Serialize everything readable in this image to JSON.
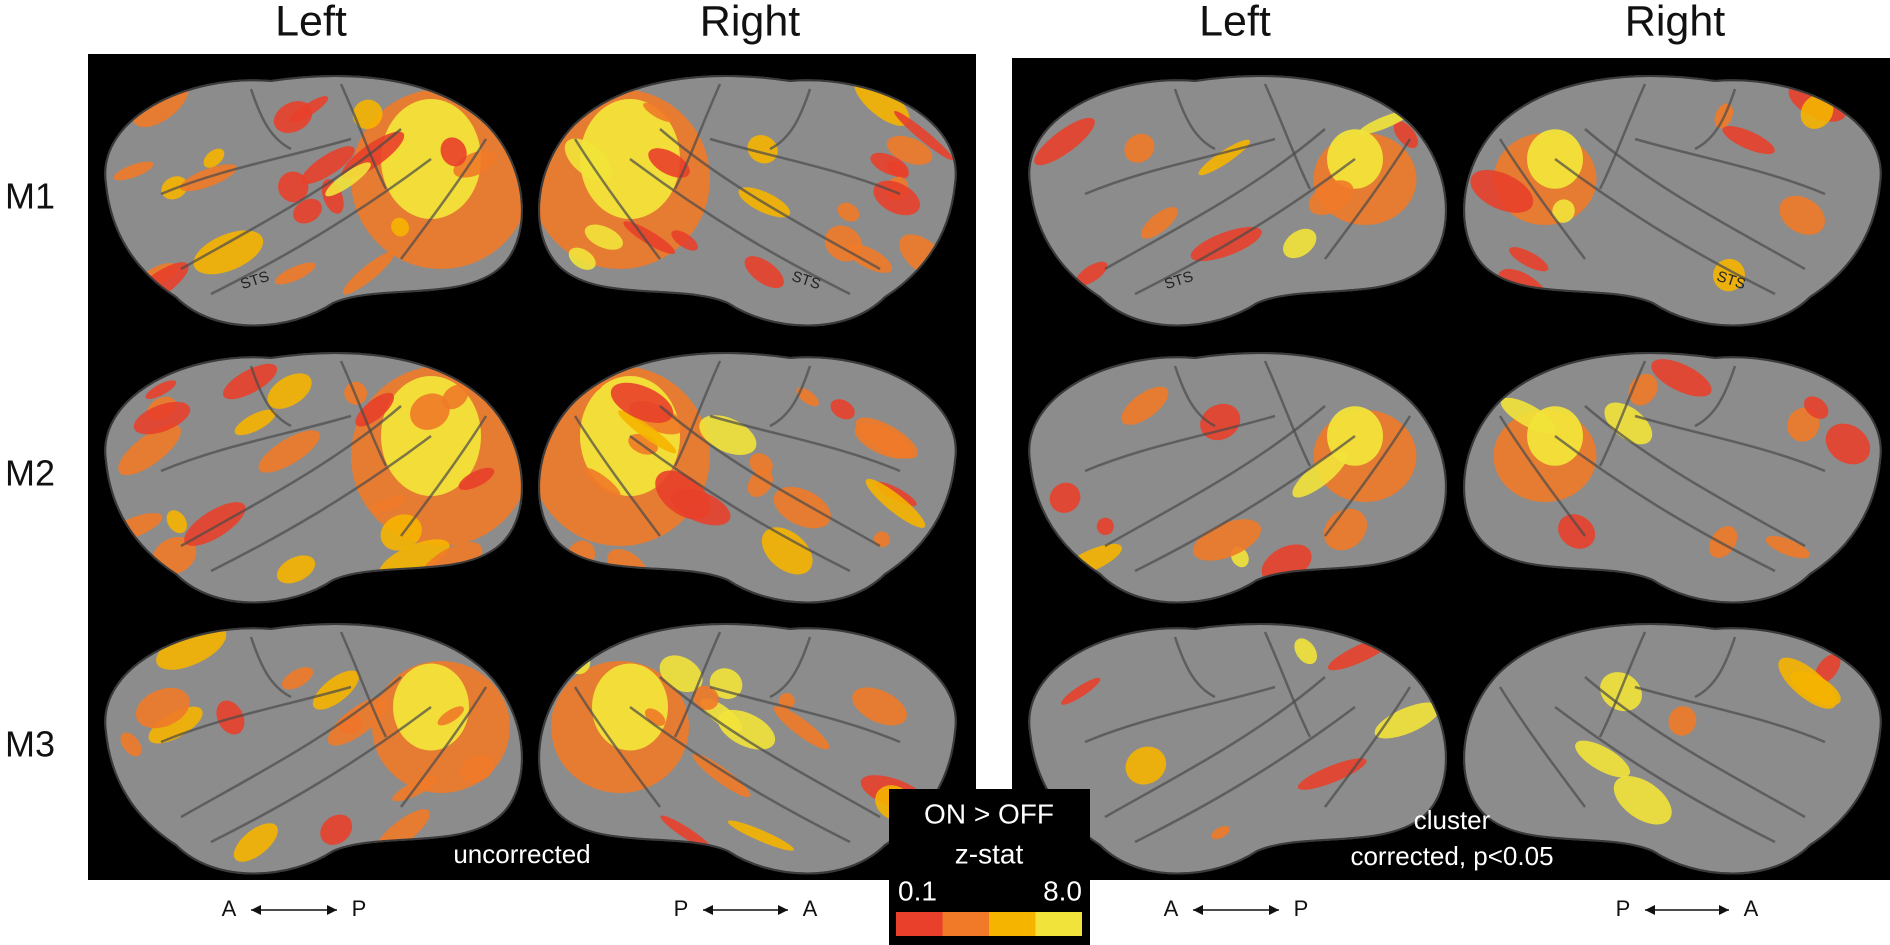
{
  "panels": [
    {
      "headers": [
        "Left",
        "Right"
      ],
      "note": [
        "uncorrected"
      ]
    },
    {
      "headers": [
        "Left",
        "Right"
      ],
      "note": [
        "cluster",
        "corrected, p<0.05"
      ]
    }
  ],
  "rows": [
    "M1",
    "M2",
    "M3"
  ],
  "sts_labels": [
    "STS",
    "STS",
    "STS",
    "STS"
  ],
  "orientation": [
    [
      "A",
      "P"
    ],
    [
      "P",
      "A"
    ],
    [
      "A",
      "P"
    ],
    [
      "P",
      "A"
    ]
  ],
  "colorbar": {
    "title": "ON > OFF",
    "label": "z-stat",
    "min": "0.1",
    "max": "8.0",
    "colors": [
      "#e8402a",
      "#f07a28",
      "#f5b400",
      "#f2e33a"
    ]
  }
}
